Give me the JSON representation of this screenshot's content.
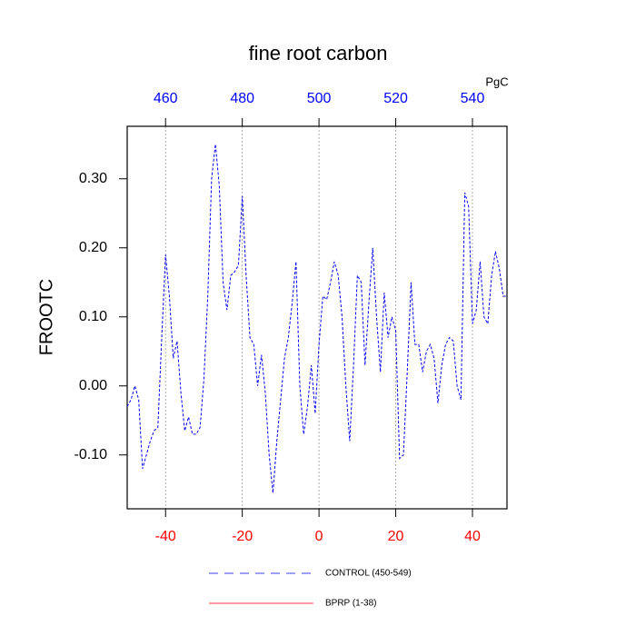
{
  "chart_data": {
    "type": "line",
    "title": "fine root carbon",
    "y_label": "FROOTC",
    "x2_unit": "PgC",
    "x": [
      -50,
      -49,
      -48,
      -47,
      -46,
      -45,
      -44,
      -43,
      -42,
      -41,
      -40,
      -39,
      -38,
      -37,
      -36,
      -35,
      -34,
      -33,
      -32,
      -31,
      -30,
      -29,
      -28,
      -27,
      -26,
      -25,
      -24,
      -23,
      -22,
      -21,
      -20,
      -19,
      -18,
      -17,
      -16,
      -15,
      -14,
      -13,
      -12,
      -11,
      -10,
      -9,
      -8,
      -7,
      -6,
      -5,
      -4,
      -3,
      -2,
      -1,
      0,
      1,
      2,
      3,
      4,
      5,
      6,
      7,
      8,
      9,
      10,
      11,
      12,
      13,
      14,
      15,
      16,
      17,
      18,
      19,
      20,
      21,
      22,
      23,
      24,
      25,
      26,
      27,
      28,
      29,
      30,
      31,
      32,
      33,
      34,
      35,
      36,
      37,
      38,
      39,
      40,
      41,
      42,
      43,
      44,
      45,
      46,
      47,
      48,
      49
    ],
    "series": [
      {
        "name": "CONTROL (450-549)",
        "color": "#0000ff",
        "dashed": true,
        "values": [
          -0.03,
          -0.02,
          0.0,
          -0.02,
          -0.12,
          -0.1,
          -0.08,
          -0.065,
          -0.06,
          0.07,
          0.19,
          0.13,
          0.04,
          0.065,
          -0.01,
          -0.065,
          -0.045,
          -0.07,
          -0.07,
          -0.06,
          0.01,
          0.13,
          0.3,
          0.35,
          0.29,
          0.15,
          0.11,
          0.16,
          0.165,
          0.175,
          0.275,
          0.16,
          0.07,
          0.06,
          0.0,
          0.045,
          -0.01,
          -0.1,
          -0.155,
          -0.08,
          -0.02,
          0.04,
          0.07,
          0.12,
          0.18,
          0.0,
          -0.07,
          -0.03,
          0.03,
          -0.04,
          0.06,
          0.13,
          0.125,
          0.15,
          0.18,
          0.16,
          0.1,
          0.0,
          -0.08,
          0.03,
          0.16,
          0.15,
          0.03,
          0.12,
          0.2,
          0.1,
          0.02,
          0.135,
          0.07,
          0.1,
          0.08,
          -0.105,
          -0.1,
          0.02,
          0.15,
          0.06,
          0.06,
          0.02,
          0.05,
          0.06,
          0.04,
          -0.025,
          0.03,
          0.06,
          0.07,
          0.065,
          0.0,
          -0.02,
          0.28,
          0.26,
          0.09,
          0.11,
          0.18,
          0.1,
          0.09,
          0.16,
          0.195,
          0.17,
          0.13,
          0.13
        ]
      },
      {
        "name": "BPRP (1-38)",
        "color": "#ff0000",
        "dashed": false
      }
    ],
    "xlim": [
      -50,
      49
    ],
    "xticks": [
      -40,
      -20,
      0,
      20,
      40
    ],
    "xtick_color": "#ff0000",
    "x2lim": [
      450,
      549
    ],
    "x2ticks": [
      460,
      480,
      500,
      520,
      540
    ],
    "x2tick_color": "#0000ff",
    "ylim": [
      -0.178,
      0.376
    ],
    "yticks": [
      {
        "value": 0.3,
        "label": "0.30"
      },
      {
        "value": 0.2,
        "label": "0.20"
      },
      {
        "value": 0.1,
        "label": "0.10"
      },
      {
        "value": 0.0,
        "label": "0.00"
      },
      {
        "value": -0.1,
        "label": "-0.10"
      }
    ],
    "grid": true
  }
}
